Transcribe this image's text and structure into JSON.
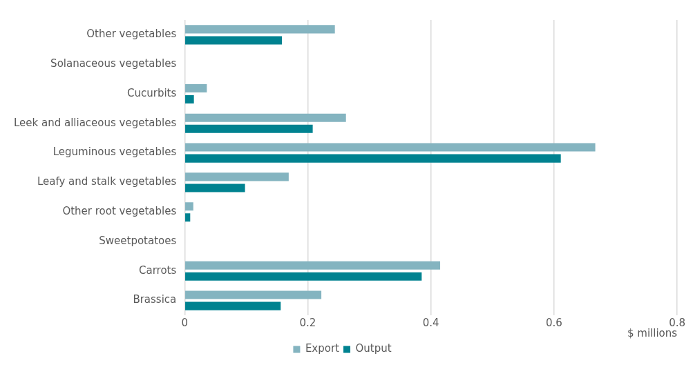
{
  "chart_data": {
    "type": "bar",
    "orientation": "horizontal",
    "xlabel": "$ millions",
    "categories": [
      "Other vegetables",
      "Solanaceous vegetables",
      "Cucurbits",
      "Leek and alliaceous vegetables",
      "Leguminous vegetables",
      "Leafy and stalk vegetables",
      "Other root vegetables",
      "Sweetpotatoes",
      "Carrots",
      "Brassica"
    ],
    "series": [
      {
        "name": "Export",
        "color": "#84b4c0",
        "values": [
          0.244,
          0,
          0.036,
          0.262,
          0.667,
          0.169,
          0.014,
          0,
          0.415,
          0.222
        ]
      },
      {
        "name": "Output",
        "color": "#008290",
        "values": [
          0.158,
          0,
          0.015,
          0.208,
          0.611,
          0.098,
          0.009,
          0,
          0.385,
          0.156
        ]
      }
    ],
    "xlim": [
      0,
      0.8
    ],
    "xticks": [
      0,
      0.2,
      0.4,
      0.6,
      0.8
    ],
    "grid": "x",
    "legend": "bottom"
  }
}
